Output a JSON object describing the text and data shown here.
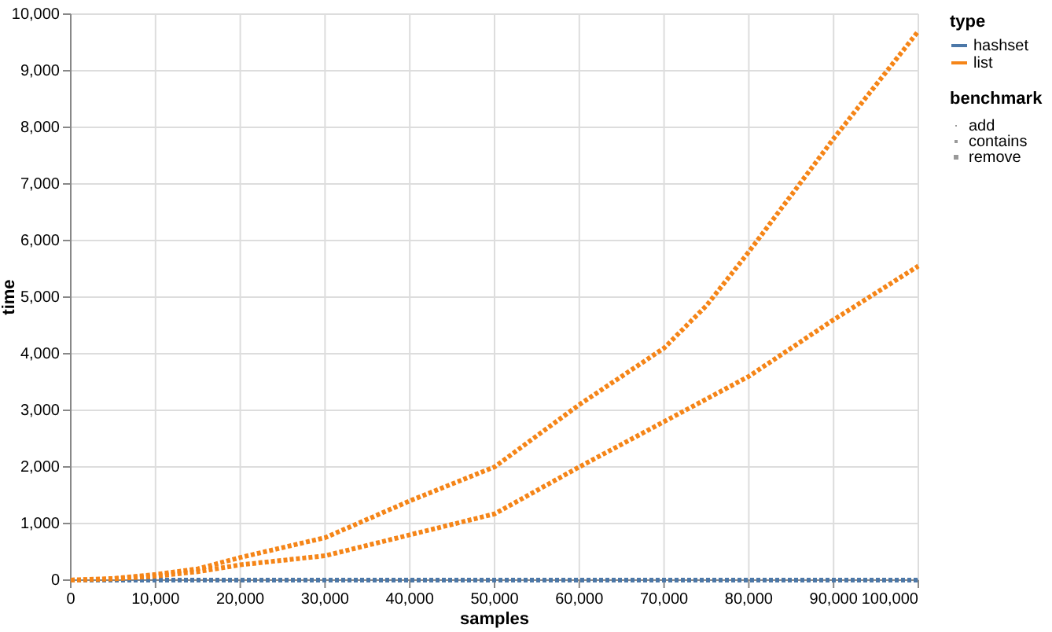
{
  "chart_data": {
    "type": "line",
    "xlabel": "samples",
    "ylabel": "time",
    "legend_title": "type",
    "x": [
      0,
      5000,
      10000,
      15000,
      20000,
      30000,
      40000,
      50000,
      60000,
      70000,
      75000,
      80000,
      90000,
      100000
    ],
    "series": [
      {
        "name": "hashset",
        "color": "#4c78a8",
        "values": [
          0,
          0,
          0,
          0,
          0,
          0,
          0,
          0,
          0,
          0,
          0,
          0,
          0,
          0
        ]
      },
      {
        "name": "list",
        "color": "#f58518",
        "values": [
          0,
          30,
          100,
          200,
          400,
          750,
          1400,
          2000,
          3100,
          4100,
          4850,
          5800,
          7800,
          9700
        ]
      },
      {
        "color": "#f58518",
        "values": [
          0,
          20,
          70,
          150,
          270,
          430,
          800,
          1170,
          2000,
          2800,
          3200,
          3600,
          4600,
          5550
        ]
      }
    ],
    "annotations": [
      "benchmark",
      "add",
      "contains",
      "remove"
    ],
    "xlim": [
      0,
      100000
    ],
    "xticks": [
      0,
      {
        "value": 10000,
        "label": "10,000"
      },
      {
        "value": 20000,
        "label": "20,000"
      },
      {
        "value": 30000,
        "label": "30,000"
      },
      {
        "value": 40000,
        "label": "40,000"
      },
      {
        "value": 50000,
        "label": "50,000"
      },
      {
        "value": 60000,
        "label": "60,000"
      },
      {
        "value": 70000,
        "label": "70,000"
      },
      {
        "value": 80000,
        "label": "80,000"
      },
      {
        "value": 90000,
        "label": "90,000"
      },
      {
        "value": 100000,
        "label": "100,000"
      }
    ],
    "ylim": [
      0,
      10000
    ],
    "yticks": [
      0,
      {
        "value": 1000,
        "label": "1,000"
      },
      {
        "value": 2000,
        "label": "2,000"
      },
      {
        "value": 3000,
        "label": "3,000"
      },
      {
        "value": 4000,
        "label": "4,000"
      },
      {
        "value": 5000,
        "label": "5,000"
      },
      {
        "value": 6000,
        "label": "6,000"
      },
      {
        "value": 7000,
        "label": "7,000"
      },
      {
        "value": 8000,
        "label": "8,000"
      },
      {
        "value": 9000,
        "label": "9,000"
      },
      {
        "value": 10000,
        "label": "10,000"
      }
    ],
    "grid": true,
    "legend": "top right",
    "line_style": "dotted"
  }
}
